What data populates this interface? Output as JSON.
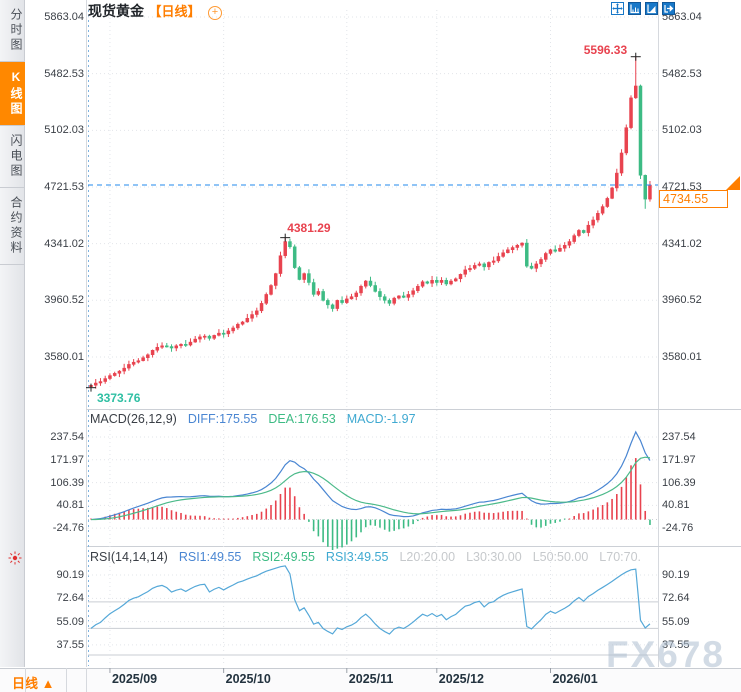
{
  "title": {
    "symbol": "现货黄金",
    "period_tag": "【日线】",
    "add_icon": "+"
  },
  "sidebar": {
    "tabs": [
      {
        "label": "分时图",
        "active": false
      },
      {
        "label": "K线图",
        "active": true
      },
      {
        "label": "闪电图",
        "active": false
      },
      {
        "label": "合约资料",
        "active": false
      }
    ]
  },
  "toolbar": {
    "icons": [
      "crosshair-move-icon",
      "axis-scale-icon",
      "axis-scale-fill-icon",
      "exit-right-icon"
    ]
  },
  "bottom": {
    "period_label": "日线 ▲"
  },
  "watermark": "FX678",
  "colors": {
    "up": "#e8434f",
    "down": "#3dbb84",
    "accent_orange": "#ff7e00",
    "diff_blue": "#4a86d2",
    "dea_green": "#4cba8a",
    "rsi_blue": "#55a8d8",
    "grid": "#e2e5ea",
    "level_gray": "#c9cdd3",
    "label_dark": "#3a3f46",
    "date_navy": "#23333f",
    "muted_gray": "#c6c9cc",
    "toolbar_blue": "#1878c8",
    "current_line": "#2288ee",
    "low_label": "#2fbfa3",
    "high_label": "#e8434f",
    "separator": "#ccd0d6",
    "edge": "#d6d9de",
    "left_dotted": "#7fb3e0"
  },
  "chart_data": {
    "type": "candlestick+indicators",
    "symbol": "现货黄金",
    "period": "日线",
    "price_axis_labels": [
      "5863.04",
      "5482.53",
      "5102.03",
      "4721.53",
      "4341.02",
      "3960.52",
      "3580.01"
    ],
    "current_price": {
      "label": "4734.55",
      "value": 4734.55
    },
    "markers": {
      "low": {
        "label": "3373.76",
        "value": 3373.76,
        "index": 0
      },
      "local_high": {
        "label": "4381.29",
        "value": 4381.29,
        "index": 41
      },
      "high": {
        "label": "5596.33",
        "value": 5596.33,
        "index": 115
      }
    },
    "months": [
      {
        "label": "2025/09",
        "index": 4
      },
      {
        "label": "2025/10",
        "index": 28
      },
      {
        "label": "2025/11",
        "index": 54
      },
      {
        "label": "2025/12",
        "index": 73
      },
      {
        "label": "2026/01",
        "index": 97
      }
    ],
    "open_first": 3380,
    "closes": [
      3390,
      3405,
      3415,
      3435,
      3455,
      3470,
      3485,
      3505,
      3530,
      3545,
      3555,
      3575,
      3595,
      3625,
      3645,
      3655,
      3650,
      3640,
      3655,
      3665,
      3660,
      3680,
      3700,
      3715,
      3720,
      3705,
      3725,
      3740,
      3735,
      3755,
      3775,
      3800,
      3815,
      3840,
      3865,
      3890,
      3940,
      4000,
      4060,
      4140,
      4260,
      4355,
      4320,
      4180,
      4100,
      4140,
      4080,
      4000,
      4020,
      3960,
      3930,
      3905,
      3960,
      3945,
      3970,
      3985,
      4010,
      4055,
      4090,
      4060,
      4020,
      3985,
      3960,
      3940,
      3975,
      3990,
      3980,
      4000,
      4025,
      4055,
      4085,
      4075,
      4095,
      4080,
      4095,
      4070,
      4090,
      4105,
      4135,
      4165,
      4175,
      4195,
      4205,
      4185,
      4215,
      4225,
      4255,
      4280,
      4300,
      4315,
      4330,
      4345,
      4190,
      4175,
      4205,
      4235,
      4275,
      4300,
      4290,
      4310,
      4330,
      4355,
      4395,
      4430,
      4415,
      4465,
      4500,
      4545,
      4590,
      4645,
      4715,
      4815,
      4950,
      5120,
      5320,
      5400,
      4800,
      4640,
      4734.55
    ],
    "wick_overrides": {
      "0": {
        "low": 3373.76
      },
      "41": {
        "high": 4381.29
      },
      "115": {
        "high": 5596.33
      },
      "117": {
        "low": 4575
      }
    },
    "macd": {
      "params": [
        26,
        12,
        9
      ],
      "header": [
        {
          "t": "MACD(26,12,9)",
          "c": "hdr-dark"
        },
        {
          "t": "DIFF:175.55",
          "c": "hdr-blue"
        },
        {
          "t": "DEA:176.53",
          "c": "hdr-green"
        },
        {
          "t": "MACD:-1.97",
          "c": "hdr-cyan"
        }
      ],
      "axis_labels": [
        "237.54",
        "171.97",
        "106.39",
        "40.81",
        "-24.76"
      ]
    },
    "rsi": {
      "params": [
        14,
        14,
        14
      ],
      "header": [
        {
          "t": "RSI(14,14,14)",
          "c": "hdr-dark"
        },
        {
          "t": "RSI1:49.55",
          "c": "hdr-blue"
        },
        {
          "t": "RSI2:49.55",
          "c": "hdr-green"
        },
        {
          "t": "RSI3:49.55",
          "c": "hdr-cyan"
        },
        {
          "t": "L20:20.00",
          "c": "hdr-gray"
        },
        {
          "t": "L30:30.00",
          "c": "hdr-gray"
        },
        {
          "t": "L50:50.00",
          "c": "hdr-gray"
        },
        {
          "t": "L70:70.",
          "c": "hdr-gray"
        }
      ],
      "axis_labels": [
        "90.19",
        "72.64",
        "55.09",
        "37.55"
      ],
      "levels": [
        70,
        50,
        30
      ]
    }
  }
}
